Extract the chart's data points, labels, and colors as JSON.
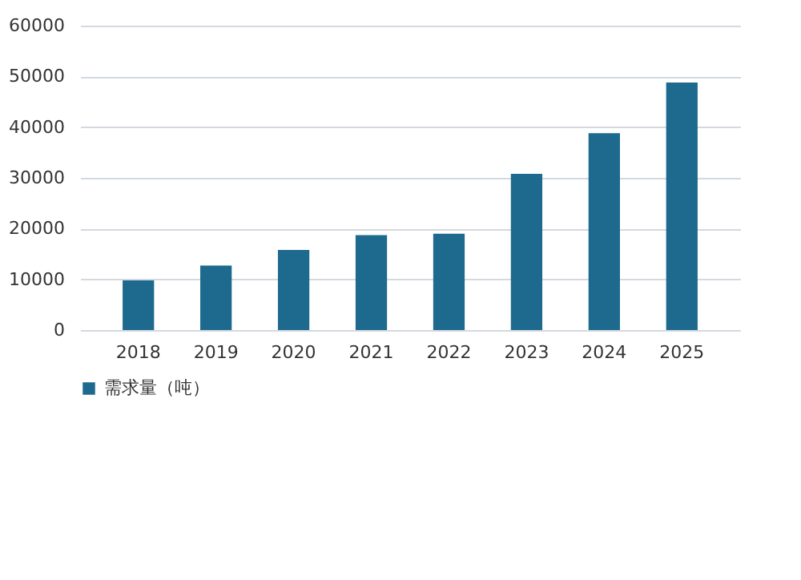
{
  "chart_data": {
    "type": "bar",
    "categories": [
      "2018",
      "2019",
      "2020",
      "2021",
      "2022",
      "2023",
      "2024",
      "2025"
    ],
    "series": [
      {
        "name": "需求量（吨）",
        "color": "#1d6a8e",
        "values": [
          9800,
          12700,
          15800,
          18700,
          19000,
          30800,
          38800,
          48800
        ]
      }
    ],
    "ylim": [
      0,
      60000
    ],
    "yticks": [
      0,
      10000,
      20000,
      30000,
      40000,
      50000,
      60000
    ],
    "grid": "y",
    "legend": "bottom"
  }
}
